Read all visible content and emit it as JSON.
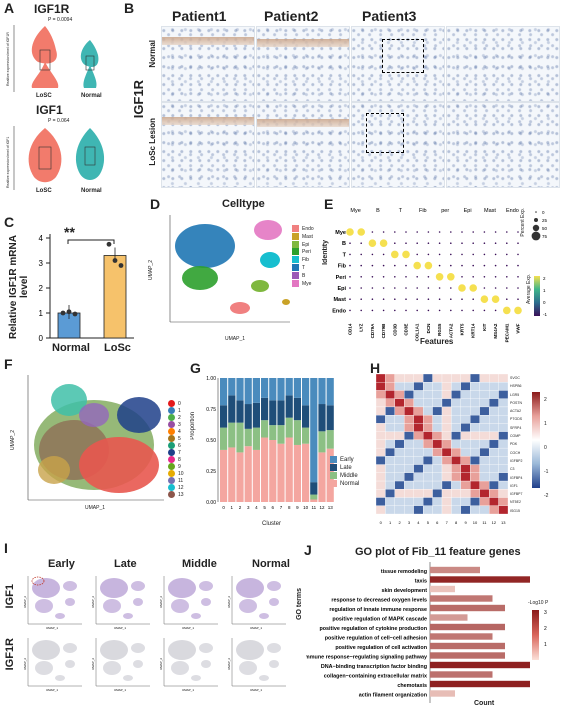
{
  "panels": {
    "A": {
      "label": "A",
      "plot1_title": "IGF1R",
      "plot1_p": "P = 0.0094",
      "plot2_title": "IGF1",
      "plot2_p": "P = 0.064",
      "ylabel1": "Realtive expression level of IGF1R",
      "ylabel2": "Realtive expression level of IGF1",
      "groups": [
        "LoSC",
        "Normal"
      ]
    },
    "B": {
      "label": "B",
      "patients": [
        "Patient1",
        "Patient2",
        "Patient3"
      ],
      "row_main": "IGF1R",
      "rows": [
        "Normal",
        "LoSc Lesion"
      ]
    },
    "C": {
      "label": "C",
      "ylabel": "Relative IGF1R mRNA level",
      "sig": "**",
      "yticks": [
        "0",
        "1",
        "2",
        "3",
        "4"
      ]
    },
    "D": {
      "label": "D",
      "title": "Celltype",
      "xlabel": "UMAP_1",
      "ylabel": "UMAP_2",
      "legend": [
        {
          "name": "Endo",
          "color": "#f08080"
        },
        {
          "name": "Mast",
          "color": "#c9a227"
        },
        {
          "name": "Epi",
          "color": "#7fb83f"
        },
        {
          "name": "Peri",
          "color": "#2ca02c"
        },
        {
          "name": "Fib",
          "color": "#17becf"
        },
        {
          "name": "T",
          "color": "#1f77b4"
        },
        {
          "name": "B",
          "color": "#9b59b6"
        },
        {
          "name": "Mye",
          "color": "#e377c2"
        }
      ],
      "cluster_labels": [
        "Fib",
        "Epi",
        "Endo",
        "Mast",
        "Mye",
        "T",
        "Peri"
      ]
    },
    "E": {
      "label": "E",
      "ylabel": "Identity",
      "xlabel": "Features",
      "cols": [
        "Mye",
        "B",
        "T",
        "Fib",
        "per",
        "Epi",
        "Mast",
        "Endo"
      ],
      "rows": [
        "Mye",
        "B",
        "T",
        "Fib",
        "Peri",
        "Epi",
        "Mast",
        "Endo"
      ],
      "genes": [
        "CD14",
        "LYZ",
        "CD79A",
        "CD79B",
        "CD3D",
        "CD3E",
        "COL1A1",
        "DCN",
        "RGS5",
        "ACTA2",
        "KRT5",
        "KRT14",
        "KIT",
        "MS4A2",
        "PECAM1",
        "VWF"
      ],
      "legend_pct_title": "Percent Exp.",
      "legend_pct": [
        "0",
        "25",
        "50",
        "75"
      ],
      "legend_avg_title": "Average Exp.",
      "legend_avg": [
        "2",
        "1",
        "0",
        "-1"
      ]
    },
    "F": {
      "label": "F",
      "xlabel": "UMAP_1",
      "ylabel": "UMAP_2",
      "clusters": [
        "0",
        "1",
        "2",
        "3",
        "4",
        "5",
        "6",
        "7",
        "8",
        "9",
        "10",
        "11",
        "12",
        "13"
      ]
    },
    "G": {
      "label": "G",
      "ylabel": "Proportion",
      "xlabel": "Cluster",
      "legend": [
        {
          "name": "Early",
          "color": "#4a8bbd"
        },
        {
          "name": "Late",
          "color": "#1f4e79"
        },
        {
          "name": "Middle",
          "color": "#8cc084"
        },
        {
          "name": "Normal",
          "color": "#f4a6a0"
        }
      ]
    },
    "H": {
      "label": "H",
      "genes": [
        "SVOC",
        "HSPB6",
        "LGR5",
        "POSTN",
        "ACTA2",
        "PTGDS",
        "SFRP4",
        "COMP",
        "PDK",
        "COCH",
        "IGFBP2",
        "C3",
        "IGFBP4",
        "IGF1",
        "IGFBP7",
        "NT5E2",
        "ISG15"
      ],
      "scale": [
        "2",
        "1",
        "0",
        "-1",
        "-2"
      ],
      "xticks": [
        "0",
        "1",
        "2",
        "3",
        "4",
        "5",
        "6",
        "7",
        "8",
        "9",
        "10",
        "11",
        "12",
        "13"
      ]
    },
    "I": {
      "label": "I",
      "cols": [
        "Early",
        "Late",
        "Middle",
        "Normal"
      ],
      "rows": [
        "IGF1",
        "IGF1R"
      ],
      "xlabel": "UMAP_1",
      "ylabel": "UMAP_2"
    },
    "J": {
      "label": "J",
      "title": "GO plot of Fib_11 feature genes",
      "ylabel": "GO terms",
      "xlabel": "Count",
      "legend_title": "-Log10 P",
      "legend_ticks": [
        "3",
        "2",
        "1"
      ]
    }
  },
  "chart_data": [
    {
      "type": "bar",
      "panel": "C",
      "categories": [
        "Normal",
        "LoSc"
      ],
      "values": [
        1.0,
        3.3
      ],
      "ylim": [
        0,
        4
      ],
      "ylabel": "Relative IGF1R mRNA level",
      "colors": [
        "#5b9bd5",
        "#f6c26b"
      ]
    },
    {
      "type": "bar",
      "panel": "G",
      "xlabel": "Cluster",
      "ylabel": "Proportion",
      "ylim": [
        0,
        1
      ],
      "categories": [
        "0",
        "1",
        "2",
        "3",
        "4",
        "5",
        "6",
        "7",
        "8",
        "9",
        "10",
        "11",
        "12",
        "13"
      ],
      "series": [
        {
          "name": "Normal",
          "values": [
            0.42,
            0.44,
            0.4,
            0.45,
            0.42,
            0.52,
            0.5,
            0.47,
            0.52,
            0.46,
            0.47,
            0.02,
            0.4,
            0.43
          ]
        },
        {
          "name": "Middle",
          "values": [
            0.18,
            0.2,
            0.24,
            0.14,
            0.18,
            0.14,
            0.12,
            0.15,
            0.16,
            0.2,
            0.13,
            0.04,
            0.17,
            0.15
          ]
        },
        {
          "name": "Late",
          "values": [
            0.18,
            0.22,
            0.18,
            0.2,
            0.2,
            0.18,
            0.2,
            0.2,
            0.18,
            0.18,
            0.18,
            0.1,
            0.22,
            0.2
          ]
        },
        {
          "name": "Early",
          "values": [
            0.22,
            0.14,
            0.18,
            0.21,
            0.2,
            0.16,
            0.18,
            0.18,
            0.14,
            0.16,
            0.22,
            0.84,
            0.21,
            0.22
          ]
        }
      ]
    },
    {
      "type": "bar",
      "panel": "J",
      "orientation": "horizontal",
      "xlabel": "Count",
      "ylabel": "GO terms",
      "categories": [
        "tissue remodeling",
        "taxis",
        "skin development",
        "response to decreased oxygen levels",
        "regulation of innate immune response",
        "positive regulation of MAPK cascade",
        "positive regulation of cytokine production",
        "positive regulation of cell−cell adhesion",
        "positive regulation of cell activation",
        "immune response−regulating signaling pathway",
        "DNA−binding transcription factor binding",
        "collagen−containing extracellular matrix",
        "chemotaxis",
        "actin filament organization"
      ],
      "values": [
        4,
        8,
        2,
        5,
        6,
        3,
        6,
        5,
        6,
        6,
        8,
        5,
        8,
        2
      ],
      "neglog10p": [
        1.5,
        3.2,
        0.5,
        1.8,
        2.0,
        1.2,
        2.1,
        1.8,
        2.0,
        2.0,
        3.3,
        1.9,
        3.3,
        0.6
      ]
    }
  ]
}
